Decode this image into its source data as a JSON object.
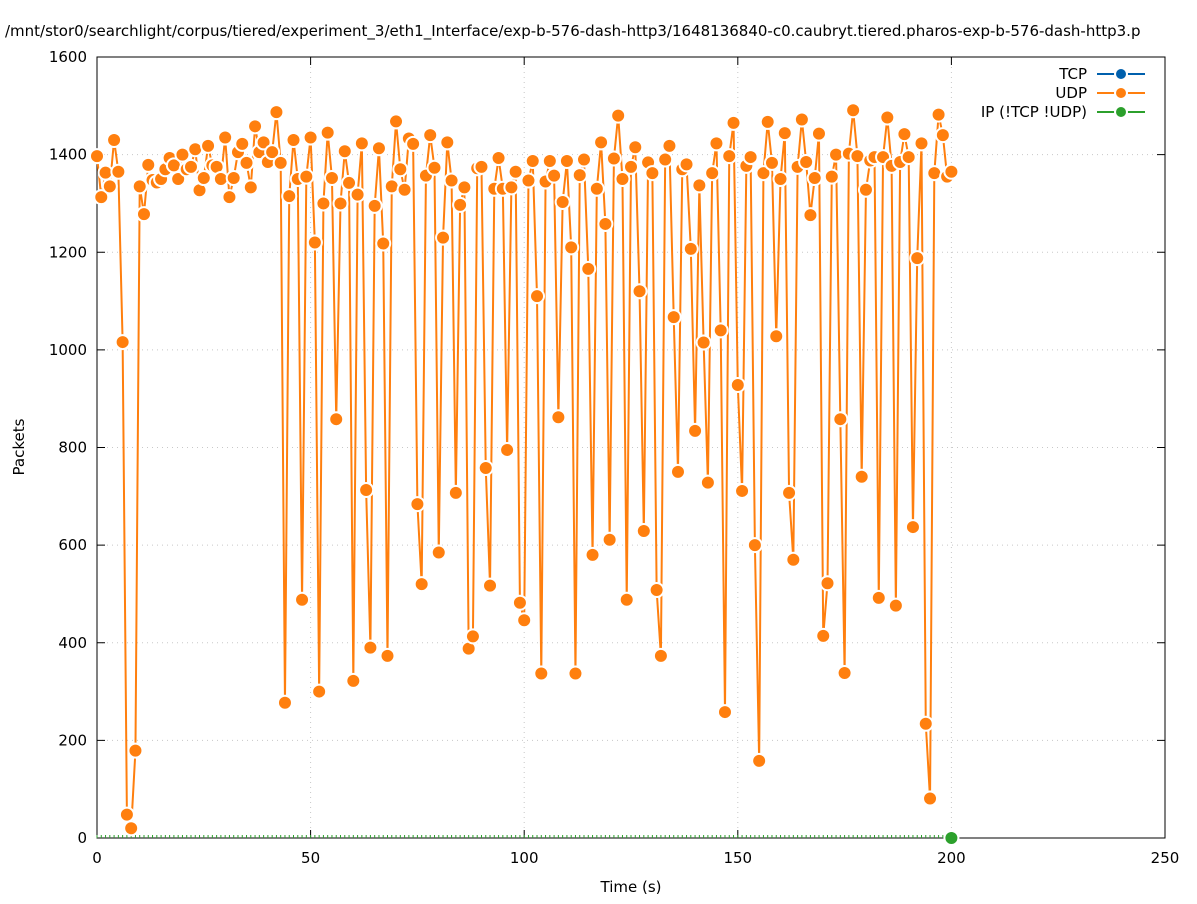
{
  "chart_data": {
    "type": "line",
    "title": "/mnt/stor0/searchlight/corpus/tiered/experiment_3/eth1_Interface/exp-b-576-dash-http3/1648136840-c0.caubryt.tiered.pharos-exp-b-576-dash-http3.p",
    "xlabel": "Time (s)",
    "ylabel": "Packets",
    "xlim": [
      0,
      250
    ],
    "ylim": [
      0,
      1600
    ],
    "xticks": [
      "0",
      "50",
      "100",
      "150",
      "200",
      "250"
    ],
    "yticks": [
      "0",
      "200",
      "400",
      "600",
      "800",
      "1000",
      "1200",
      "1400",
      "1600"
    ],
    "grid": true,
    "legend_position": "top-right",
    "series": [
      {
        "name": "TCP",
        "color": "#0060ad",
        "x": [],
        "values": []
      },
      {
        "name": "UDP",
        "color": "#ff7f0e",
        "x_start": 0,
        "x_step": 1,
        "values": [
          1397,
          1313,
          1363,
          1335,
          1430,
          1365,
          1016,
          48,
          20,
          179,
          1335,
          1278,
          1379,
          1348,
          1343,
          1350,
          1370,
          1393,
          1378,
          1350,
          1400,
          1370,
          1375,
          1411,
          1327,
          1352,
          1418,
          1378,
          1375,
          1350,
          1435,
          1313,
          1352,
          1405,
          1422,
          1383,
          1333,
          1458,
          1405,
          1425,
          1385,
          1405,
          1487,
          1383,
          277,
          1315,
          1430,
          1350,
          488,
          1355,
          1435,
          1220,
          300,
          1300,
          1445,
          1352,
          858,
          1300,
          1407,
          1342,
          322,
          1318,
          1423,
          713,
          390,
          1295,
          1413,
          1218,
          373,
          1335,
          1468,
          1370,
          1328,
          1433,
          1422,
          684,
          520,
          1357,
          1440,
          1373,
          585,
          1230,
          1425,
          1347,
          707,
          1297,
          1333,
          388,
          413,
          1372,
          1375,
          758,
          517,
          1330,
          1393,
          1330,
          795,
          1333,
          1365,
          482,
          446,
          1347,
          1387,
          1110,
          337,
          1345,
          1387,
          1357,
          862,
          1303,
          1387,
          1210,
          337,
          1358,
          1390,
          1166,
          580,
          1330,
          1425,
          1258,
          611,
          1392,
          1480,
          1350,
          488,
          1375,
          1415,
          1120,
          629,
          1384,
          1362,
          508,
          373,
          1390,
          1418,
          1067,
          750,
          1370,
          1380,
          1207,
          834,
          1337,
          1015,
          728,
          1362,
          1423,
          1040,
          258,
          1397,
          1465,
          928,
          711,
          1377,
          1395,
          600,
          158,
          1362,
          1467,
          1383,
          1028,
          1350,
          1444,
          707,
          570,
          1375,
          1472,
          1385,
          1276,
          1352,
          1443,
          414,
          522,
          1355,
          1400,
          858,
          338,
          1402,
          1491,
          1397,
          740,
          1328,
          1388,
          1395,
          492,
          1395,
          1476,
          1377,
          476,
          1385,
          1442,
          1395,
          637,
          1188,
          1423,
          234,
          81,
          1362,
          1482,
          1440,
          1355,
          1365
        ]
      },
      {
        "name": "IP (!TCP  !UDP)",
        "color": "#2ca02c",
        "x": [
          200
        ],
        "values": [
          0
        ]
      }
    ]
  }
}
